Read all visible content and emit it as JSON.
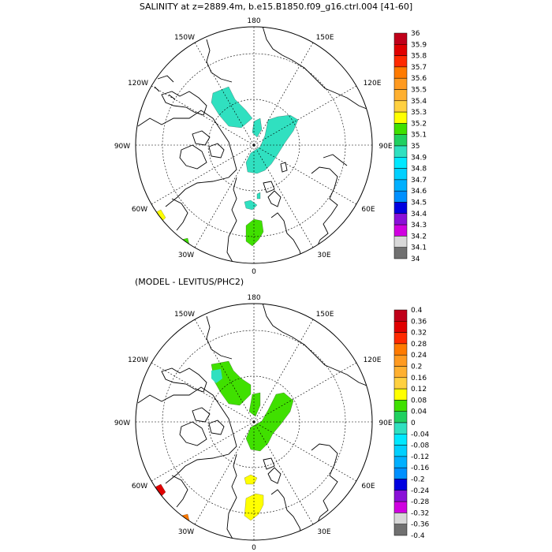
{
  "panels": [
    {
      "title": "SALINITY at z=2889.4m, b.e15.B1850.f09_g16.ctrl.004 [41-60]",
      "lon_labels": [
        "180",
        "150E",
        "120E",
        "90E",
        "60E",
        "30E",
        "0",
        "30W",
        "60W",
        "90W",
        "120W",
        "150W"
      ],
      "colorbar": {
        "labels": [
          "36",
          "35.9",
          "35.8",
          "35.7",
          "35.6",
          "35.5",
          "35.4",
          "35.3",
          "35.2",
          "35.1",
          "35",
          "34.9",
          "34.8",
          "34.7",
          "34.6",
          "34.5",
          "34.4",
          "34.3",
          "34.2",
          "34.1",
          "34"
        ],
        "colors": [
          "#c0001a",
          "#e00000",
          "#ff2a00",
          "#ff7a00",
          "#ff9a20",
          "#ffb030",
          "#ffd040",
          "#ffff00",
          "#40e000",
          "#20d060",
          "#30e0c0",
          "#00e8ff",
          "#00d0ff",
          "#00b0ff",
          "#0090ff",
          "#0000e0",
          "#8a10d8",
          "#d000e0",
          "#d8d8d8",
          "#707070"
        ]
      },
      "field_colors": {
        "main": "#30e0c0",
        "secondary": "#40e000",
        "edge_a": "#ffff00",
        "edge_b": "#40e000"
      }
    },
    {
      "title": "(MODEL - LEVITUS/PHC2)",
      "lon_labels": [
        "180",
        "150E",
        "120E",
        "90E",
        "60E",
        "30E",
        "0",
        "30W",
        "60W",
        "90W",
        "120W",
        "150W"
      ],
      "colorbar": {
        "labels": [
          "0.4",
          "0.36",
          "0.32",
          "0.28",
          "0.24",
          "0.2",
          "0.16",
          "0.12",
          "0.08",
          "0.04",
          "0",
          "-0.04",
          "-0.08",
          "-0.12",
          "-0.16",
          "-0.2",
          "-0.24",
          "-0.28",
          "-0.32",
          "-0.36",
          "-0.4"
        ],
        "colors": [
          "#c0001a",
          "#e00000",
          "#ff2a00",
          "#ff7a00",
          "#ff9a20",
          "#ffb030",
          "#ffd040",
          "#ffff00",
          "#40e000",
          "#20d060",
          "#30e0c0",
          "#00e8ff",
          "#00d0ff",
          "#00b0ff",
          "#0090ff",
          "#0000e0",
          "#8a10d8",
          "#d000e0",
          "#d8d8d8",
          "#707070"
        ]
      },
      "field_colors": {
        "main": "#40e000",
        "secondary": "#ffff00",
        "edge_a": "#e00000",
        "edge_b": "#ff7a00"
      }
    }
  ]
}
